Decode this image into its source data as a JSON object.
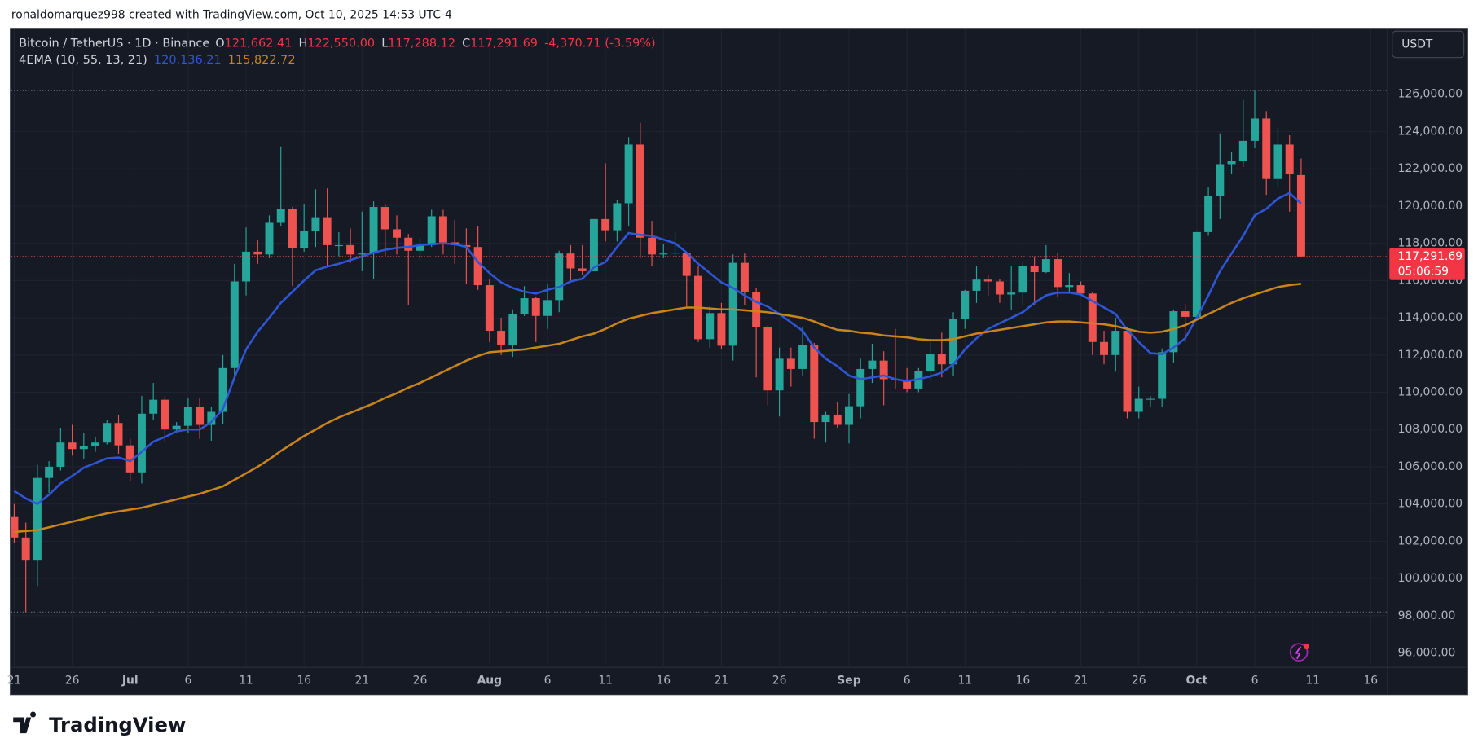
{
  "header": {
    "attribution": "ronaldomarquez998 created with TradingView.com, Oct 10, 2025 14:53 UTC-4"
  },
  "chart_data": {
    "type": "candlestick",
    "legend": {
      "symbol": "Bitcoin / TetherUS · 1D · Binance",
      "fields": [
        {
          "key": "O",
          "value": "121,662.41"
        },
        {
          "key": "H",
          "value": "122,550.00"
        },
        {
          "key": "L",
          "value": "117,288.12"
        },
        {
          "key": "C",
          "value": "117,291.69"
        }
      ],
      "change": "-4,370.71 (-3.59%)",
      "indicator": "4EMA (10, 55, 13, 21)"
    },
    "up_color": "#26a69a",
    "down_color": "#ef5350",
    "ohlc": [
      [
        103300,
        104000,
        101900,
        102200
      ],
      [
        102200,
        103000,
        98200,
        100960
      ],
      [
        100960,
        106100,
        99600,
        105400
      ],
      [
        105400,
        106300,
        104600,
        106000
      ],
      [
        106000,
        108100,
        105800,
        107300
      ],
      [
        107300,
        108250,
        106600,
        106950
      ],
      [
        106950,
        107800,
        106400,
        107100
      ],
      [
        107100,
        107600,
        106800,
        107300
      ],
      [
        107300,
        108500,
        107200,
        108350
      ],
      [
        108350,
        108800,
        106700,
        107150
      ],
      [
        107150,
        107500,
        105250,
        105700
      ],
      [
        105700,
        109800,
        105100,
        108850
      ],
      [
        108850,
        110500,
        108500,
        109600
      ],
      [
        109600,
        109800,
        107300,
        108000
      ],
      [
        108000,
        108400,
        107800,
        108200
      ],
      [
        108200,
        109700,
        107800,
        109200
      ],
      [
        109200,
        109700,
        107500,
        108250
      ],
      [
        108250,
        109200,
        107400,
        108950
      ],
      [
        108950,
        111999,
        108300,
        111300
      ],
      [
        111300,
        116900,
        110600,
        115950
      ],
      [
        115950,
        118850,
        115200,
        117550
      ],
      [
        117550,
        118200,
        116900,
        117400
      ],
      [
        117400,
        119500,
        117200,
        119100
      ],
      [
        119100,
        123200,
        118900,
        119850
      ],
      [
        119850,
        119950,
        115700,
        117750
      ],
      [
        117750,
        120100,
        117550,
        118650
      ],
      [
        118650,
        120900,
        117800,
        119400
      ],
      [
        119400,
        120950,
        116800,
        117900
      ],
      [
        117900,
        118600,
        117300,
        117900
      ],
      [
        117900,
        118800,
        116950,
        117400
      ],
      [
        117400,
        119700,
        116500,
        117450
      ],
      [
        117450,
        120250,
        116100,
        119950
      ],
      [
        119950,
        120100,
        117300,
        118750
      ],
      [
        118750,
        119500,
        117400,
        118300
      ],
      [
        118300,
        118500,
        114700,
        117600
      ],
      [
        117600,
        118300,
        117100,
        117900
      ],
      [
        117900,
        119800,
        117800,
        119450
      ],
      [
        119450,
        119800,
        117400,
        118050
      ],
      [
        118050,
        119250,
        116900,
        117900
      ],
      [
        117900,
        118800,
        115800,
        117800
      ],
      [
        117800,
        118900,
        115500,
        115750
      ],
      [
        115750,
        116100,
        112700,
        113300
      ],
      [
        113300,
        114000,
        112000,
        112550
      ],
      [
        112550,
        114450,
        111900,
        114200
      ],
      [
        114200,
        115700,
        114100,
        115050
      ],
      [
        115050,
        115100,
        112700,
        114100
      ],
      [
        114100,
        115800,
        113400,
        114950
      ],
      [
        114950,
        117600,
        114300,
        117450
      ],
      [
        117450,
        117900,
        115900,
        116650
      ],
      [
        116650,
        117900,
        116300,
        116500
      ],
      [
        116500,
        119300,
        116500,
        119300
      ],
      [
        119300,
        122300,
        118100,
        118700
      ],
      [
        118700,
        120300,
        118100,
        120150
      ],
      [
        120150,
        123700,
        118900,
        123300
      ],
      [
        123300,
        124474,
        117200,
        118300
      ],
      [
        118300,
        119200,
        116800,
        117400
      ],
      [
        117400,
        117950,
        117200,
        117450
      ],
      [
        117450,
        118600,
        117250,
        117500
      ],
      [
        117500,
        117550,
        114600,
        116250
      ],
      [
        116250,
        116800,
        112700,
        112850
      ],
      [
        112850,
        114600,
        112400,
        114250
      ],
      [
        114250,
        114800,
        112300,
        112500
      ],
      [
        112500,
        117400,
        111700,
        116950
      ],
      [
        116950,
        117450,
        114700,
        115400
      ],
      [
        115400,
        115600,
        110800,
        113500
      ],
      [
        113500,
        113600,
        109300,
        110100
      ],
      [
        110100,
        112400,
        108700,
        111800
      ],
      [
        111800,
        112400,
        110300,
        111250
      ],
      [
        111250,
        113500,
        110900,
        112550
      ],
      [
        112550,
        112650,
        107500,
        108400
      ],
      [
        108400,
        108950,
        107300,
        108800
      ],
      [
        108800,
        109500,
        108100,
        108250
      ],
      [
        108250,
        109900,
        107250,
        109250
      ],
      [
        109250,
        111800,
        108600,
        111250
      ],
      [
        111250,
        112600,
        110500,
        111700
      ],
      [
        111700,
        112200,
        109300,
        110700
      ],
      [
        110700,
        113400,
        110200,
        110650
      ],
      [
        110650,
        111300,
        110000,
        110200
      ],
      [
        110200,
        111300,
        110000,
        111150
      ],
      [
        111150,
        112900,
        110600,
        112050
      ],
      [
        112050,
        113200,
        110800,
        111500
      ],
      [
        111500,
        114300,
        110900,
        113950
      ],
      [
        113950,
        115500,
        113400,
        115450
      ],
      [
        115450,
        116800,
        114800,
        116050
      ],
      [
        116050,
        116300,
        115200,
        115950
      ],
      [
        115950,
        116100,
        114800,
        115250
      ],
      [
        115250,
        116800,
        114400,
        115350
      ],
      [
        115350,
        117000,
        114700,
        116800
      ],
      [
        116800,
        117300,
        114700,
        116450
      ],
      [
        116450,
        117900,
        116400,
        117150
      ],
      [
        117150,
        117500,
        115100,
        115650
      ],
      [
        115650,
        116400,
        115400,
        115750
      ],
      [
        115750,
        115950,
        115300,
        115300
      ],
      [
        115300,
        115400,
        112000,
        112700
      ],
      [
        112700,
        113300,
        111500,
        112000
      ],
      [
        112000,
        114000,
        111100,
        113300
      ],
      [
        113300,
        113500,
        108600,
        108950
      ],
      [
        108950,
        110300,
        108600,
        109650
      ],
      [
        109650,
        109800,
        109200,
        109650
      ],
      [
        109650,
        112350,
        109200,
        112150
      ],
      [
        112150,
        114450,
        111600,
        114350
      ],
      [
        114350,
        114750,
        112700,
        114050
      ],
      [
        114050,
        118600,
        113900,
        118600
      ],
      [
        118600,
        121000,
        118400,
        120550
      ],
      [
        120550,
        123900,
        119300,
        122250
      ],
      [
        122250,
        122900,
        121700,
        122400
      ],
      [
        122400,
        125700,
        122100,
        123500
      ],
      [
        123500,
        126200,
        123100,
        124700
      ],
      [
        124700,
        125100,
        120600,
        121450
      ],
      [
        121450,
        124200,
        121000,
        123300
      ],
      [
        123300,
        123800,
        119700,
        121700
      ],
      [
        121662.41,
        122550,
        117288.12,
        117291.69
      ]
    ],
    "series": [
      {
        "color": "#2f56d6",
        "last_label": "120,136.21",
        "values": [
          104700,
          104300,
          104000,
          104500,
          105100,
          105500,
          105950,
          106200,
          106450,
          106500,
          106300,
          106800,
          107350,
          107600,
          107900,
          108000,
          108000,
          108400,
          109100,
          110800,
          112300,
          113250,
          114000,
          114800,
          115400,
          116000,
          116550,
          116750,
          116900,
          117100,
          117300,
          117500,
          117650,
          117750,
          117800,
          117900,
          117950,
          118000,
          117950,
          117800,
          117000,
          116400,
          115900,
          115600,
          115400,
          115300,
          115500,
          115650,
          115950,
          116100,
          116700,
          117000,
          117800,
          118550,
          118450,
          118400,
          118200,
          118000,
          117500,
          116900,
          116400,
          115900,
          115600,
          115200,
          114850,
          114600,
          114200,
          113750,
          113300,
          112400,
          111800,
          111400,
          110900,
          110700,
          110800,
          110900,
          110700,
          110600,
          110700,
          110850,
          111050,
          111500,
          112300,
          112900,
          113400,
          113700,
          114000,
          114300,
          114800,
          115200,
          115350,
          115350,
          115250,
          114900,
          114550,
          114200,
          113350,
          112700,
          112100,
          112050,
          112400,
          112900,
          114000,
          115200,
          116500,
          117450,
          118400,
          119500,
          119850,
          120400,
          120700,
          120136.21
        ]
      },
      {
        "color": "#c9841a",
        "last_label": "115,822.72",
        "values": [
          102500,
          102550,
          102600,
          102750,
          102900,
          103050,
          103200,
          103350,
          103500,
          103600,
          103700,
          103800,
          103950,
          104100,
          104250,
          104400,
          104550,
          104750,
          104950,
          105300,
          105650,
          106000,
          106400,
          106850,
          107250,
          107650,
          108000,
          108350,
          108650,
          108900,
          109150,
          109400,
          109700,
          109950,
          110250,
          110500,
          110800,
          111100,
          111400,
          111700,
          111950,
          112150,
          112200,
          112250,
          112300,
          112400,
          112500,
          112600,
          112800,
          113000,
          113150,
          113400,
          113700,
          113950,
          114100,
          114250,
          114350,
          114450,
          114550,
          114550,
          114500,
          114450,
          114450,
          114400,
          114350,
          114300,
          114200,
          114100,
          114000,
          113800,
          113550,
          113350,
          113300,
          113200,
          113150,
          113050,
          113000,
          112950,
          112850,
          112800,
          112800,
          112850,
          113000,
          113150,
          113250,
          113350,
          113450,
          113550,
          113650,
          113750,
          113800,
          113800,
          113750,
          113700,
          113650,
          113550,
          113400,
          113250,
          113200,
          113250,
          113400,
          113600,
          113900,
          114200,
          114500,
          114800,
          115050,
          115250,
          115450,
          115650,
          115750,
          115822.72
        ]
      }
    ],
    "ylim": [
      95230,
      129540
    ],
    "yticks": [
      {
        "value": 96000,
        "label": "96,000.00"
      },
      {
        "value": 98000,
        "label": "98,000.00"
      },
      {
        "value": 100000,
        "label": "100,000.00"
      },
      {
        "value": 102000,
        "label": "102,000.00"
      },
      {
        "value": 104000,
        "label": "104,000.00"
      },
      {
        "value": 106000,
        "label": "106,000.00"
      },
      {
        "value": 108000,
        "label": "108,000.00"
      },
      {
        "value": 110000,
        "label": "110,000.00"
      },
      {
        "value": 112000,
        "label": "112,000.00"
      },
      {
        "value": 114000,
        "label": "114,000.00"
      },
      {
        "value": 116000,
        "label": "116,000.00"
      },
      {
        "value": 118000,
        "label": "118,000.00"
      },
      {
        "value": 120000,
        "label": "120,000.00"
      },
      {
        "value": 122000,
        "label": "122,000.00"
      },
      {
        "value": 124000,
        "label": "124,000.00"
      },
      {
        "value": 126000,
        "label": "126,000.00"
      }
    ],
    "xlim": [
      -0.25,
      118.45
    ],
    "xticks": [
      {
        "value": 0,
        "label": "21"
      },
      {
        "value": 5,
        "label": "26"
      },
      {
        "value": 10,
        "label": "Jul"
      },
      {
        "value": 15,
        "label": "6"
      },
      {
        "value": 20,
        "label": "11"
      },
      {
        "value": 25,
        "label": "16"
      },
      {
        "value": 30,
        "label": "21"
      },
      {
        "value": 35,
        "label": "26"
      },
      {
        "value": 41,
        "label": "Aug"
      },
      {
        "value": 46,
        "label": "6"
      },
      {
        "value": 51,
        "label": "11"
      },
      {
        "value": 56,
        "label": "16"
      },
      {
        "value": 61,
        "label": "21"
      },
      {
        "value": 66,
        "label": "26"
      },
      {
        "value": 72,
        "label": "Sep"
      },
      {
        "value": 77,
        "label": "6"
      },
      {
        "value": 82,
        "label": "11"
      },
      {
        "value": 87,
        "label": "16"
      },
      {
        "value": 92,
        "label": "21"
      },
      {
        "value": 97,
        "label": "26"
      },
      {
        "value": 102,
        "label": "Oct"
      },
      {
        "value": 107,
        "label": "6"
      },
      {
        "value": 112,
        "label": "11"
      },
      {
        "value": 117,
        "label": "16"
      }
    ],
    "grid": true,
    "last_price": {
      "label": "117,291.69",
      "countdown": "05:06:59"
    },
    "currency": "USDT"
  },
  "footer": {
    "logo": "TradingView"
  }
}
